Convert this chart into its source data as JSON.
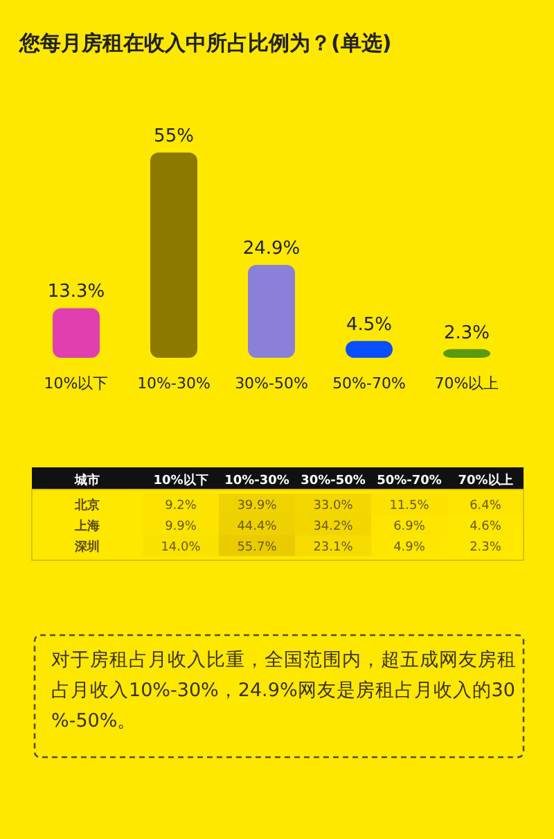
{
  "chart_data": [
    {
      "type": "bar",
      "title": "您每月房租在收入中所占比例为？(单选)",
      "categories": [
        "10%以下",
        "10%-30%",
        "30%-50%",
        "50%-70%",
        "70%以上"
      ],
      "values": [
        13.3,
        55,
        24.9,
        4.5,
        2.3
      ],
      "value_labels": [
        "13.3%",
        "55%",
        "24.9%",
        "4.5%",
        "2.3%"
      ],
      "colors": [
        "#e03fb0",
        "#8c7a00",
        "#8a80d8",
        "#0a4fff",
        "#5a9a10"
      ],
      "annotations": [
        "对于房租占月收入比重，全国范围内，超五成网友房租占月收入10%-30%，24.9%网友是房租占月收入的30%-50%。"
      ]
    },
    {
      "type": "heatmap",
      "ylabel": "城市",
      "categories": [
        "10%以下",
        "10%-30%",
        "30%-50%",
        "50%-70%",
        "70%以上"
      ],
      "y_categories": [
        "北京",
        "上海",
        "深圳"
      ],
      "cells": [
        [
          9.2,
          39.9,
          33.0,
          11.5,
          6.4
        ],
        [
          9.9,
          44.4,
          34.2,
          6.9,
          4.6
        ],
        [
          14.0,
          55.7,
          23.1,
          4.9,
          2.3
        ]
      ],
      "cell_labels": [
        [
          "9.2%",
          "39.9%",
          "33.0%",
          "11.5%",
          "6.4%"
        ],
        [
          "9.9%",
          "44.4%",
          "34.2%",
          "6.9%",
          "4.6%"
        ],
        [
          "14.0%",
          "55.7%",
          "23.1%",
          "4.9%",
          "2.3%"
        ]
      ]
    }
  ]
}
